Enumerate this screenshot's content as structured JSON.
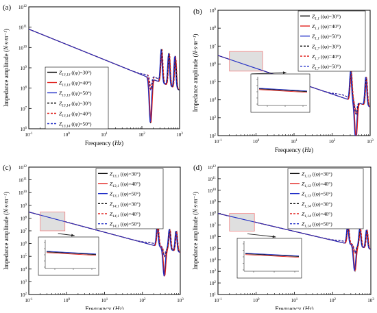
{
  "figure": {
    "panels": [
      "(a)",
      "(b)",
      "(c)",
      "(d)"
    ]
  },
  "colors": {
    "phi30": "#000000",
    "phi40": "#e0221e",
    "phi50": "#2230c8",
    "inset_highlight": "#f08080",
    "arrow": "#222222"
  },
  "chart_data": [
    {
      "panel": "(a)",
      "type": "line",
      "xlabel": "Frequency",
      "xunit": "Hz",
      "ylabel": "Impedance amplitude",
      "yunit": "N·s·m⁻¹",
      "xscale": "log",
      "yscale": "log",
      "xlim": [
        0.1,
        1000
      ],
      "ylim": [
        1000000,
        1000000000000
      ],
      "xtick_exponents": [
        -1,
        0,
        1,
        2,
        3
      ],
      "ytick_exponents": [
        6,
        7,
        8,
        9,
        10,
        11,
        12
      ],
      "legend_location": "lower-left",
      "baseline_y_at_xlim": [
        80000000000,
        80000000
      ],
      "resonances": {
        "dip": 170,
        "peaks": [
          330,
          520,
          760
        ]
      },
      "series": [
        {
          "name": "Z13,13",
          "phi": "30°",
          "dash": false,
          "color": "#000000"
        },
        {
          "name": "Z13,13",
          "phi": "40°",
          "dash": false,
          "color": "#e0221e"
        },
        {
          "name": "Z13,13",
          "phi": "50°",
          "dash": false,
          "color": "#2230c8"
        },
        {
          "name": "Z13,14",
          "phi": "30°",
          "dash": true,
          "color": "#000000"
        },
        {
          "name": "Z13,14",
          "phi": "40°",
          "dash": true,
          "color": "#e0221e"
        },
        {
          "name": "Z13,14",
          "phi": "50°",
          "dash": true,
          "color": "#2230c8"
        }
      ],
      "inset": null
    },
    {
      "panel": "(b)",
      "type": "line",
      "xlabel": "Frequency",
      "xunit": "Hz",
      "ylabel": "Impedance amplitude",
      "yunit": "N·s·m⁻¹",
      "xscale": "log",
      "yscale": "log",
      "xlim": [
        0.1,
        1000
      ],
      "ylim": [
        100,
        1000000000
      ],
      "xtick_exponents": [
        -1,
        0,
        1,
        2,
        3
      ],
      "ytick_exponents": [
        2,
        3,
        4,
        5,
        6,
        7,
        8,
        9
      ],
      "legend_location": "top-right",
      "baseline_y_at_xlim": [
        3000000,
        4000
      ],
      "resonances": {
        "dip": 420,
        "peaks": [
          310,
          780
        ]
      },
      "series": [
        {
          "name": "Z1,1",
          "phi": "30°",
          "dash": false,
          "color": "#000000"
        },
        {
          "name": "Z1,1",
          "phi": "40°",
          "dash": false,
          "color": "#e0221e"
        },
        {
          "name": "Z1,1",
          "phi": "50°",
          "dash": false,
          "color": "#2230c8"
        },
        {
          "name": "Z1,7",
          "phi": "30°",
          "dash": true,
          "color": "#000000"
        },
        {
          "name": "Z1,7",
          "phi": "40°",
          "dash": true,
          "color": "#e0221e"
        },
        {
          "name": "Z1,7",
          "phi": "50°",
          "dash": true,
          "color": "#2230c8"
        }
      ],
      "inset": {
        "region_x": [
          0.2,
          1.5
        ],
        "region_y": [
          400000,
          5000000
        ]
      }
    },
    {
      "panel": "(c)",
      "type": "line",
      "xlabel": "Frequency",
      "xunit": "Hz",
      "ylabel": "Impedance amplitude",
      "yunit": "N·s·m⁻¹",
      "xscale": "log",
      "yscale": "log",
      "xlim": [
        0.1,
        1000
      ],
      "ylim": [
        100,
        1000000000000
      ],
      "xtick_exponents": [
        -1,
        0,
        1,
        2,
        3
      ],
      "ytick_exponents": [
        2,
        3,
        4,
        5,
        6,
        7,
        8,
        9,
        10,
        11,
        12
      ],
      "legend_location": "top-right",
      "baseline_y_at_xlim": [
        300000000,
        200000
      ],
      "resonances": {
        "dip": 380,
        "peaks": [
          250,
          520,
          780
        ]
      },
      "series": [
        {
          "name": "Z13,1",
          "phi": "30°",
          "dash": false,
          "color": "#000000"
        },
        {
          "name": "Z13,1",
          "phi": "40°",
          "dash": false,
          "color": "#e0221e"
        },
        {
          "name": "Z13,1",
          "phi": "50°",
          "dash": false,
          "color": "#2230c8"
        },
        {
          "name": "Z14,1",
          "phi": "30°",
          "dash": true,
          "color": "#000000"
        },
        {
          "name": "Z14,1",
          "phi": "40°",
          "dash": true,
          "color": "#e0221e"
        },
        {
          "name": "Z14,1",
          "phi": "50°",
          "dash": true,
          "color": "#2230c8"
        }
      ],
      "inset": {
        "region_x": [
          0.2,
          0.9
        ],
        "region_y": [
          10000000,
          300000000
        ]
      }
    },
    {
      "panel": "(d)",
      "type": "line",
      "xlabel": "Frequency",
      "xunit": "Hz",
      "ylabel": "Impedance amplitude",
      "yunit": "N·s·m⁻¹",
      "xscale": "log",
      "yscale": "log",
      "xlim": [
        0.1,
        1000
      ],
      "ylim": [
        10,
        1000000000000
      ],
      "xtick_exponents": [
        -1,
        0,
        1,
        2,
        3
      ],
      "ytick_exponents": [
        1,
        2,
        3,
        4,
        5,
        6,
        7,
        8,
        9,
        10,
        11,
        12
      ],
      "legend_location": "top-right",
      "baseline_y_at_xlim": [
        100000000,
        80000
      ],
      "resonances": {
        "dip": 380,
        "peaks": [
          250,
          520,
          780
        ]
      },
      "series": [
        {
          "name": "Z1,13",
          "phi": "30°",
          "dash": false,
          "color": "#000000"
        },
        {
          "name": "Z1,13",
          "phi": "40°",
          "dash": false,
          "color": "#e0221e"
        },
        {
          "name": "Z1,13",
          "phi": "50°",
          "dash": false,
          "color": "#2230c8"
        },
        {
          "name": "Z1,14",
          "phi": "30°",
          "dash": true,
          "color": "#000000"
        },
        {
          "name": "Z1,14",
          "phi": "40°",
          "dash": true,
          "color": "#e0221e"
        },
        {
          "name": "Z1,14",
          "phi": "50°",
          "dash": true,
          "color": "#2230c8"
        }
      ],
      "inset": {
        "region_x": [
          0.2,
          0.9
        ],
        "region_y": [
          3000000,
          100000000
        ]
      }
    }
  ]
}
